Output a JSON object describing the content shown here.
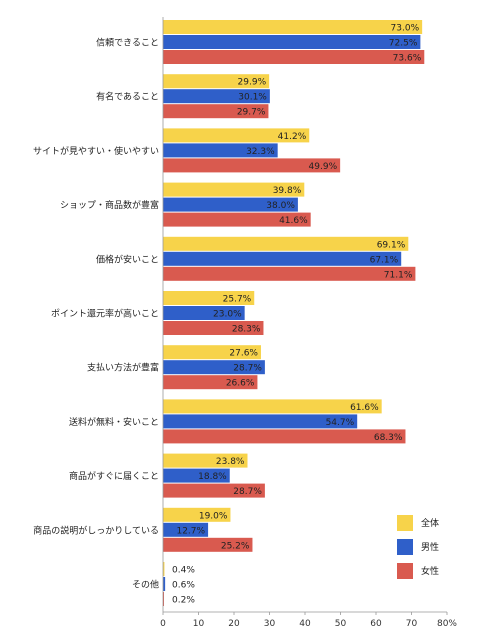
{
  "chart_data": {
    "type": "bar",
    "orientation": "horizontal",
    "categories": [
      "信頼できること",
      "有名であること",
      "サイトが見やすい・使いやすい",
      "ショップ・商品数が豊富",
      "価格が安いこと",
      "ポイント還元率が高いこと",
      "支払い方法が豊富",
      "送料が無料・安いこと",
      "商品がすぐに届くこと",
      "商品の説明がしっかりしている",
      "その他"
    ],
    "series": [
      {
        "name": "全体",
        "color": "#f7d34a",
        "values": [
          73.0,
          29.9,
          41.2,
          39.8,
          69.1,
          25.7,
          27.6,
          61.6,
          23.8,
          19.0,
          0.4
        ]
      },
      {
        "name": "男性",
        "color": "#2f5fc9",
        "values": [
          72.5,
          30.1,
          32.3,
          38.0,
          67.1,
          23.0,
          28.7,
          54.7,
          18.8,
          12.7,
          0.6
        ]
      },
      {
        "name": "女性",
        "color": "#d95a4f",
        "values": [
          73.6,
          29.7,
          49.9,
          41.6,
          71.1,
          28.3,
          26.6,
          68.3,
          28.7,
          25.2,
          0.2
        ]
      }
    ],
    "xlim": [
      0,
      80
    ],
    "xticks": [
      "0",
      "10",
      "20",
      "30",
      "40",
      "50",
      "60",
      "70",
      "80%"
    ],
    "legend_position": "bottom-right",
    "grid": false
  }
}
